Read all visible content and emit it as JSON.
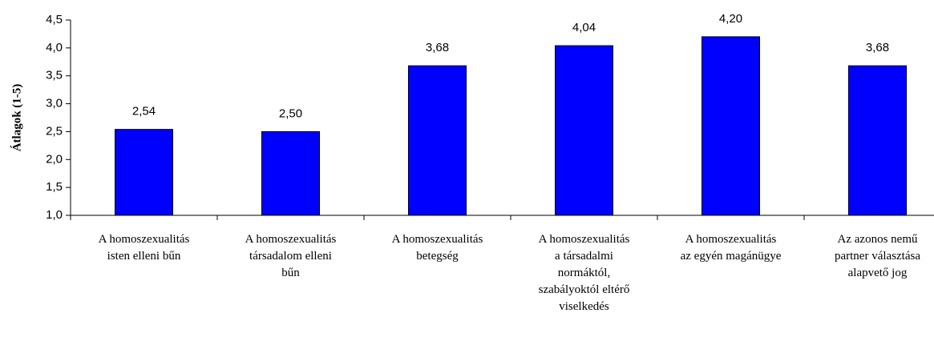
{
  "chart_data": {
    "type": "bar",
    "y_label": "Átlagok (1-5)",
    "categories": [
      "A homoszexualitás\nisten elleni bűn",
      "A homoszexualitás\ntársadalom elleni\nbűn",
      "A homoszexualitás\nbetegség",
      "A homoszexualitás\na társadalmi\nnormáktól,\nszabályoktól eltérő\nviselkedés",
      "A homoszexualitás\naz egyén magánügye",
      "Az azonos nemű\npartner választása\nalapvető jog"
    ],
    "values": [
      2.54,
      2.5,
      3.68,
      4.04,
      4.2,
      3.68
    ],
    "value_labels": [
      "2,54",
      "2,50",
      "3,68",
      "4,04",
      "4,20",
      "3,68"
    ],
    "color": "#0000ff",
    "ylim": [
      1.0,
      4.5
    ],
    "yticks": [
      {
        "value": 1.0,
        "label": "1,0"
      },
      {
        "value": 1.5,
        "label": "1,5"
      },
      {
        "value": 2.0,
        "label": "2,0"
      },
      {
        "value": 2.5,
        "label": "2,5"
      },
      {
        "value": 3.0,
        "label": "3,0"
      },
      {
        "value": 3.5,
        "label": "3,5"
      },
      {
        "value": 4.0,
        "label": "4,0"
      },
      {
        "value": 4.5,
        "label": "4,5"
      }
    ],
    "grid": false
  }
}
